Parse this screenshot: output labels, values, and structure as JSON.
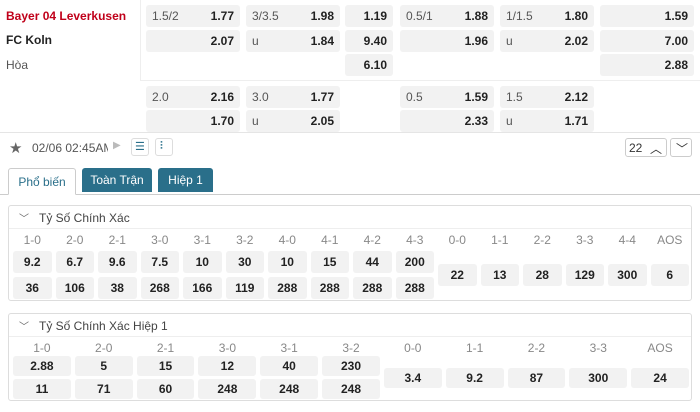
{
  "match": {
    "home": "Bayer 04 Leverkusen",
    "away": "FC Koln",
    "draw": "Hòa"
  },
  "odds": {
    "main": [
      [
        {
          "line": "1.5/2",
          "odds": "1.77"
        },
        {
          "line": "3/3.5",
          "odds": "1.98"
        },
        {
          "odds": "1.19"
        },
        {
          "line": "0.5/1",
          "odds": "1.88"
        },
        {
          "line": "1/1.5",
          "odds": "1.80"
        },
        {
          "odds": "1.59"
        }
      ],
      [
        {
          "odds": "2.07"
        },
        {
          "line": "u",
          "odds": "1.84"
        },
        {
          "odds": "9.40"
        },
        {
          "odds": "1.96"
        },
        {
          "line": "u",
          "odds": "2.02"
        },
        {
          "odds": "7.00"
        }
      ],
      [
        null,
        null,
        {
          "odds": "6.10"
        },
        null,
        null,
        {
          "odds": "2.88"
        }
      ]
    ],
    "alt": [
      [
        {
          "line": "2.0",
          "odds": "2.16"
        },
        {
          "line": "3.0",
          "odds": "1.77"
        },
        null,
        {
          "line": "0.5",
          "odds": "1.59"
        },
        {
          "line": "1.5",
          "odds": "2.12"
        },
        null
      ],
      [
        {
          "odds": "1.70"
        },
        {
          "line": "u",
          "odds": "2.05"
        },
        null,
        {
          "odds": "2.33"
        },
        {
          "line": "u",
          "odds": "1.71"
        },
        null
      ]
    ]
  },
  "toolbar": {
    "datetime": "02/06 02:45AM",
    "count": "22"
  },
  "tabs": [
    "Phổ biến",
    "Toàn Trận",
    "Hiệp 1"
  ],
  "sections": [
    {
      "title": "Tỷ Số Chính Xác",
      "win_scores": [
        "1-0",
        "2-0",
        "2-1",
        "3-0",
        "3-1",
        "3-2",
        "4-0",
        "4-1",
        "4-2",
        "4-3"
      ],
      "home": [
        "9.2",
        "6.7",
        "9.6",
        "7.5",
        "10",
        "30",
        "10",
        "15",
        "44",
        "200"
      ],
      "away": [
        "36",
        "106",
        "38",
        "268",
        "166",
        "119",
        "288",
        "288",
        "288",
        "288"
      ],
      "draw_scores": [
        "0-0",
        "1-1",
        "2-2",
        "3-3",
        "4-4",
        "AOS"
      ],
      "draw": [
        "22",
        "13",
        "28",
        "129",
        "300",
        "6"
      ]
    },
    {
      "title": "Tỷ Số Chính Xác Hiệp 1",
      "win_scores": [
        "1-0",
        "2-0",
        "2-1",
        "3-0",
        "3-1",
        "3-2"
      ],
      "home": [
        "2.88",
        "5",
        "15",
        "12",
        "40",
        "230"
      ],
      "away": [
        "11",
        "71",
        "60",
        "248",
        "248",
        "248"
      ],
      "draw_scores": [
        "0-0",
        "1-1",
        "2-2",
        "3-3",
        "AOS"
      ],
      "draw": [
        "3.4",
        "9.2",
        "87",
        "300",
        "24"
      ]
    }
  ]
}
